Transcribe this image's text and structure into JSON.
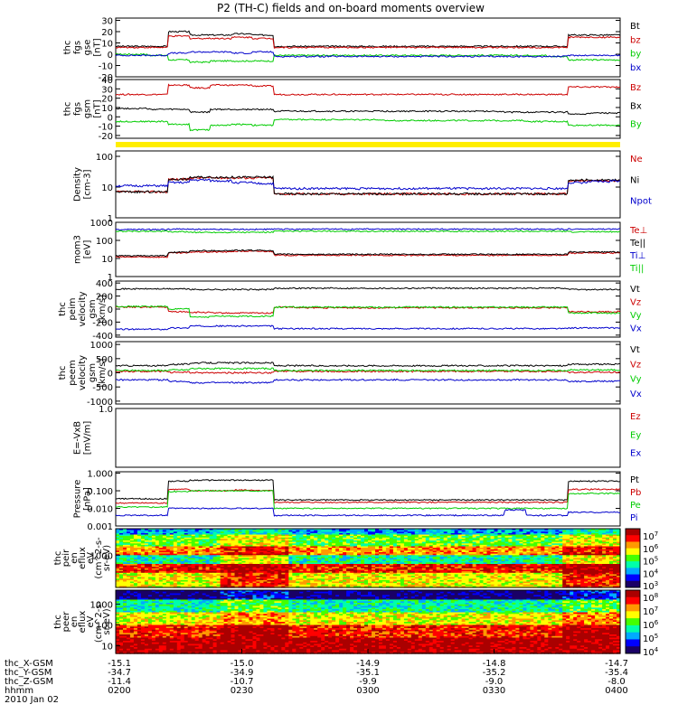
{
  "title": "P2 (TH-C) fields and on-board moments overview",
  "colors": {
    "black": "#000000",
    "red": "#cc0000",
    "green": "#00cc00",
    "blue": "#0000cc",
    "yellow": "#ffee00"
  },
  "chart_data": [
    {
      "type": "line",
      "ylabel": [
        "thc",
        "fgs",
        "gse",
        "[nT]"
      ],
      "yticks": [
        "30",
        "20",
        "10",
        "0",
        "-10",
        "-20"
      ],
      "ylim": [
        -20,
        32
      ],
      "series": [
        {
          "name": "Bt",
          "color": "black",
          "values": [
            7,
            7,
            7,
            20,
            17,
            17,
            18,
            17,
            7,
            7,
            7,
            7,
            7,
            7,
            7,
            7,
            7,
            7,
            7,
            7,
            7,
            7,
            17,
            17,
            17
          ]
        },
        {
          "name": "bz",
          "color": "red",
          "values": [
            6,
            6,
            6,
            16,
            14,
            14,
            15,
            14,
            6,
            6,
            6,
            6,
            6,
            6,
            6,
            6,
            6,
            6,
            6,
            6,
            6,
            6,
            15,
            15,
            15
          ]
        },
        {
          "name": "by",
          "color": "green",
          "values": [
            0,
            0,
            -1,
            -5,
            -7,
            -6,
            -6,
            -6,
            -1,
            -1,
            -1,
            -1,
            -1,
            -1,
            -1,
            -1,
            -1,
            -1,
            -1,
            -1,
            -1,
            -2,
            -5,
            -5,
            -5
          ]
        },
        {
          "name": "bx",
          "color": "blue",
          "values": [
            -1,
            -1,
            -1,
            1,
            2,
            2,
            1,
            2,
            -2,
            -2,
            -2,
            -2,
            -2,
            -2,
            -2,
            -2,
            -2,
            -2,
            -2,
            -2,
            -2,
            -2,
            -1,
            -1,
            -1
          ]
        }
      ]
    },
    {
      "type": "line",
      "ylabel": [
        "thc",
        "fgs",
        "gsm",
        "[nT]"
      ],
      "yticks": [
        "40",
        "30",
        "20",
        "10",
        "0",
        "-10",
        "-20"
      ],
      "ylim": [
        -23,
        40
      ],
      "series": [
        {
          "name": "Bz",
          "color": "red",
          "values": [
            24,
            24,
            24,
            34,
            31,
            34,
            34,
            33,
            24,
            24,
            24,
            24,
            24,
            24,
            24,
            24,
            24,
            24,
            24,
            24,
            24,
            24,
            32,
            32,
            32
          ]
        },
        {
          "name": "Bx",
          "color": "black",
          "values": [
            9,
            9,
            8,
            8,
            5,
            8,
            8,
            8,
            6,
            6,
            6,
            6,
            6,
            6,
            6,
            6,
            6,
            6,
            6,
            5,
            5,
            5,
            3,
            4,
            4
          ]
        },
        {
          "name": "By",
          "color": "green",
          "values": [
            -5,
            -5,
            -5,
            -8,
            -14,
            -9,
            -8,
            -9,
            -3,
            -3,
            -3,
            -3,
            -3,
            -4,
            -4,
            -4,
            -4,
            -4,
            -4,
            -4,
            -5,
            -5,
            -9,
            -9,
            -9
          ]
        }
      ]
    },
    {
      "type": "line",
      "ylabel": [
        "Density",
        "[cm-3]"
      ],
      "yticks": [
        "100",
        "10",
        "1"
      ],
      "yscale": "log",
      "ylim": [
        1,
        150
      ],
      "series": [
        {
          "name": "Ne",
          "color": "red",
          "values": [
            7,
            7,
            7,
            18,
            20,
            20,
            20,
            20,
            6,
            6,
            6,
            6,
            6,
            6,
            6,
            6,
            6,
            6,
            6,
            6,
            6,
            6,
            16,
            16,
            16
          ]
        },
        {
          "name": "Ni",
          "color": "black",
          "values": [
            7,
            7,
            7,
            18,
            21,
            21,
            21,
            21,
            6,
            6,
            6,
            6,
            6,
            6,
            6,
            6,
            6,
            6,
            6,
            6,
            6,
            6,
            17,
            17,
            17
          ]
        },
        {
          "name": "Npot",
          "color": "blue",
          "values": [
            11,
            11,
            11,
            14,
            17,
            16,
            14,
            13,
            9,
            9,
            9,
            9,
            9,
            9,
            9,
            9,
            9,
            9,
            9,
            9,
            9,
            9,
            14,
            15,
            16
          ]
        }
      ]
    },
    {
      "type": "line",
      "ylabel": [
        "mom3",
        "[eV]"
      ],
      "yticks": [
        "1000",
        "100",
        "10",
        "1"
      ],
      "yscale": "log",
      "ylim": [
        1,
        1000
      ],
      "series": [
        {
          "name": "Te⊥",
          "color": "red",
          "values": [
            12,
            12,
            12,
            20,
            23,
            23,
            25,
            25,
            15,
            15,
            15,
            15,
            15,
            15,
            15,
            15,
            15,
            15,
            15,
            15,
            15,
            15,
            20,
            20,
            20
          ]
        },
        {
          "name": "Te||",
          "color": "black",
          "values": [
            14,
            14,
            14,
            22,
            27,
            27,
            28,
            28,
            17,
            17,
            17,
            17,
            17,
            17,
            17,
            17,
            17,
            17,
            17,
            17,
            17,
            17,
            23,
            23,
            23
          ]
        },
        {
          "name": "Ti⊥",
          "color": "blue",
          "values": [
            400,
            400,
            400,
            420,
            410,
            410,
            410,
            410,
            420,
            420,
            420,
            420,
            420,
            420,
            420,
            420,
            420,
            420,
            420,
            420,
            420,
            420,
            420,
            420,
            420
          ]
        },
        {
          "name": "Ti||",
          "color": "green",
          "values": [
            320,
            320,
            320,
            300,
            280,
            280,
            280,
            280,
            320,
            320,
            320,
            320,
            320,
            320,
            320,
            320,
            320,
            320,
            320,
            320,
            320,
            320,
            300,
            300,
            300
          ]
        }
      ]
    },
    {
      "type": "line",
      "ylabel": [
        "thc",
        "peim",
        "velocity",
        "gsm",
        "[km/s]"
      ],
      "yticks": [
        "400",
        "200",
        "0",
        "-200",
        "-400"
      ],
      "ylim": [
        -430,
        430
      ],
      "series": [
        {
          "name": "Vt",
          "color": "black",
          "values": [
            310,
            310,
            310,
            310,
            300,
            300,
            300,
            300,
            320,
            320,
            320,
            320,
            320,
            320,
            320,
            320,
            320,
            320,
            320,
            320,
            320,
            320,
            300,
            300,
            300
          ]
        },
        {
          "name": "Vz",
          "color": "red",
          "values": [
            30,
            30,
            30,
            -40,
            -50,
            -60,
            -60,
            -60,
            30,
            20,
            20,
            20,
            20,
            20,
            20,
            20,
            20,
            20,
            20,
            20,
            20,
            20,
            -40,
            -40,
            -40
          ]
        },
        {
          "name": "Vy",
          "color": "green",
          "values": [
            40,
            40,
            40,
            0,
            -120,
            -110,
            -110,
            -110,
            30,
            30,
            30,
            30,
            30,
            30,
            30,
            30,
            30,
            30,
            30,
            30,
            30,
            30,
            -60,
            -60,
            -60
          ]
        },
        {
          "name": "Vx",
          "color": "blue",
          "values": [
            -310,
            -310,
            -310,
            -290,
            -260,
            -260,
            -260,
            -260,
            -300,
            -300,
            -300,
            -300,
            -300,
            -300,
            -300,
            -300,
            -300,
            -300,
            -300,
            -300,
            -300,
            -300,
            -290,
            -290,
            -290
          ]
        }
      ]
    },
    {
      "type": "line",
      "ylabel": [
        "thc",
        "peem",
        "velocity",
        "gsm",
        "[km/s]"
      ],
      "yticks": [
        "1000",
        "500",
        "0",
        "-500",
        "-1000"
      ],
      "ylim": [
        -1100,
        1100
      ],
      "series": [
        {
          "name": "Vt",
          "color": "black",
          "values": [
            250,
            250,
            250,
            300,
            350,
            350,
            350,
            350,
            250,
            250,
            250,
            250,
            250,
            250,
            250,
            250,
            250,
            250,
            250,
            250,
            250,
            250,
            300,
            300,
            300
          ]
        },
        {
          "name": "Vz",
          "color": "red",
          "values": [
            50,
            50,
            50,
            20,
            0,
            0,
            0,
            0,
            50,
            50,
            50,
            50,
            50,
            50,
            50,
            50,
            50,
            50,
            50,
            50,
            50,
            50,
            20,
            20,
            20
          ]
        },
        {
          "name": "Vy",
          "color": "green",
          "values": [
            80,
            80,
            80,
            100,
            150,
            150,
            150,
            150,
            80,
            80,
            80,
            80,
            80,
            80,
            80,
            80,
            80,
            80,
            80,
            80,
            80,
            80,
            100,
            100,
            100
          ]
        },
        {
          "name": "Vx",
          "color": "blue",
          "values": [
            -250,
            -250,
            -250,
            -300,
            -350,
            -350,
            -350,
            -350,
            -250,
            -250,
            -250,
            -250,
            -250,
            -250,
            -250,
            -250,
            -250,
            -250,
            -250,
            -250,
            -250,
            -250,
            -300,
            -300,
            -300
          ]
        }
      ]
    },
    {
      "type": "line",
      "ylabel": [
        "E=-VxB",
        "[mV/m]"
      ],
      "yticks": [
        "1.0"
      ],
      "ylim": [
        0,
        1
      ],
      "series": [
        {
          "name": "Ez",
          "color": "red",
          "values": []
        },
        {
          "name": "Ey",
          "color": "green",
          "values": []
        },
        {
          "name": "Ex",
          "color": "blue",
          "values": []
        }
      ]
    },
    {
      "type": "line",
      "ylabel": [
        "Pressure",
        "[nPa]"
      ],
      "yticks": [
        "1.000",
        "0.100",
        "0.010",
        "0.001"
      ],
      "yscale": "log",
      "ylim": [
        0.001,
        1.2
      ],
      "series": [
        {
          "name": "Pt",
          "color": "black",
          "values": [
            0.035,
            0.035,
            0.035,
            0.35,
            0.4,
            0.4,
            0.4,
            0.4,
            0.03,
            0.03,
            0.03,
            0.03,
            0.03,
            0.03,
            0.03,
            0.03,
            0.03,
            0.03,
            0.03,
            0.03,
            0.03,
            0.03,
            0.35,
            0.35,
            0.35
          ]
        },
        {
          "name": "Pb",
          "color": "red",
          "values": [
            0.02,
            0.02,
            0.02,
            0.12,
            0.1,
            0.1,
            0.11,
            0.1,
            0.022,
            0.022,
            0.022,
            0.022,
            0.022,
            0.022,
            0.022,
            0.022,
            0.022,
            0.022,
            0.022,
            0.022,
            0.022,
            0.022,
            0.12,
            0.12,
            0.12
          ]
        },
        {
          "name": "Pe",
          "color": "green",
          "values": [
            0.012,
            0.012,
            0.012,
            0.09,
            0.1,
            0.1,
            0.1,
            0.1,
            0.01,
            0.01,
            0.01,
            0.01,
            0.01,
            0.01,
            0.01,
            0.01,
            0.01,
            0.01,
            0.01,
            0.01,
            0.01,
            0.01,
            0.07,
            0.07,
            0.07
          ]
        },
        {
          "name": "Pi",
          "color": "blue",
          "values": [
            0.004,
            0.004,
            0.004,
            0.01,
            0.01,
            0.01,
            0.01,
            0.01,
            0.004,
            0.004,
            0.004,
            0.004,
            0.004,
            0.004,
            0.004,
            0.004,
            0.004,
            0.004,
            0.004,
            0.008,
            0.004,
            0.004,
            0.006,
            0.006,
            0.006
          ]
        }
      ]
    },
    {
      "type": "heatmap",
      "ylabel": [
        "thc",
        "peir",
        "en",
        "eflux",
        "eV",
        "(cm^2-s-",
        "sr-eV)"
      ],
      "yticks": [
        "1000"
      ],
      "colorbar_ticks": [
        "10^7",
        "10^6",
        "10^5",
        "10^4",
        "10^3"
      ]
    },
    {
      "type": "heatmap",
      "ylabel": [
        "thc",
        "peer",
        "en",
        "eflux",
        "eV",
        "(cm^2-s-",
        "sr-eV)"
      ],
      "yticks": [
        "1000",
        "100",
        "10"
      ],
      "colorbar_ticks": [
        "10^8",
        "10^7",
        "10^6",
        "10^5",
        "10^4"
      ]
    }
  ],
  "xaxis": {
    "labels": [
      "thc_X-GSM",
      "thc_Y-GSM",
      "thc_Z-GSM",
      "hhmm",
      "2010 Jan 02"
    ],
    "ticks": [
      {
        "x": "-15.1",
        "y": "-34.7",
        "z": "-11.4",
        "t": "0200"
      },
      {
        "x": "-15.0",
        "y": "-34.9",
        "z": "-10.7",
        "t": "0230"
      },
      {
        "x": "-14.9",
        "y": "-35.1",
        "z": "-9.9",
        "t": "0300"
      },
      {
        "x": "-14.8",
        "y": "-35.2",
        "z": "-9.0",
        "t": "0330"
      },
      {
        "x": "-14.7",
        "y": "-35.4",
        "z": "-8.0",
        "t": "0400"
      }
    ]
  }
}
